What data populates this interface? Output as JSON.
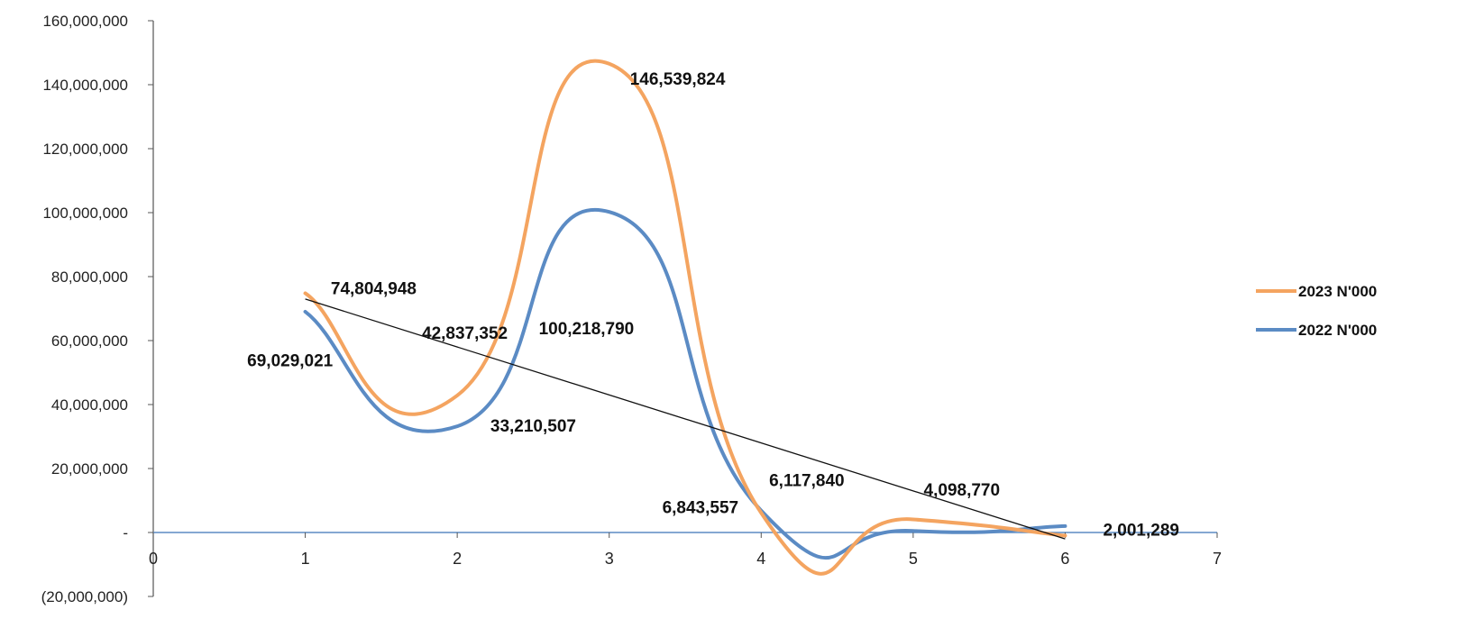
{
  "chart_data": {
    "type": "line",
    "x": [
      1,
      2,
      3,
      4,
      5,
      6
    ],
    "series": [
      {
        "name": "2023 N'000",
        "color": "#F4A460",
        "values": [
          74804948,
          42837352,
          146539824,
          6117840,
          4098770,
          -1000000
        ]
      },
      {
        "name": "2022 N'000",
        "color": "#5B8BC4",
        "values": [
          69029021,
          33210507,
          100218790,
          6843557,
          500000,
          2001289
        ]
      }
    ],
    "trendline": {
      "color": "#111111",
      "from": [
        1,
        73000000
      ],
      "to": [
        6,
        -2000000
      ]
    },
    "data_labels": [
      {
        "text": "74,804,948",
        "x": 1.45,
        "y": 74500000
      },
      {
        "text": "69,029,021",
        "x": 0.9,
        "y": 52000000
      },
      {
        "text": "42,837,352",
        "x": 2.05,
        "y": 60500000
      },
      {
        "text": "33,210,507",
        "x": 2.5,
        "y": 31500000
      },
      {
        "text": "146,539,824",
        "x": 3.45,
        "y": 140000000
      },
      {
        "text": "100,218,790",
        "x": 2.85,
        "y": 62000000
      },
      {
        "text": "6,117,840",
        "x": 4.3,
        "y": 14500000
      },
      {
        "text": "6,843,557",
        "x": 3.6,
        "y": 6000000
      },
      {
        "text": "4,098,770",
        "x": 5.32,
        "y": 11500000
      },
      {
        "text": "2,001,289",
        "x": 6.5,
        "y": -1000000
      }
    ],
    "xlim": [
      0,
      7
    ],
    "ylim": [
      -20000000,
      160000000
    ],
    "y_ticks": [
      {
        "value": 160000000,
        "label": "160,000,000"
      },
      {
        "value": 140000000,
        "label": "140,000,000"
      },
      {
        "value": 120000000,
        "label": "120,000,000"
      },
      {
        "value": 100000000,
        "label": "100,000,000"
      },
      {
        "value": 80000000,
        "label": "80,000,000"
      },
      {
        "value": 60000000,
        "label": "60,000,000"
      },
      {
        "value": 40000000,
        "label": "40,000,000"
      },
      {
        "value": 20000000,
        "label": "20,000,000"
      },
      {
        "value": 0,
        "label": "-"
      },
      {
        "value": -20000000,
        "label": "(20,000,000)"
      }
    ],
    "x_ticks": [
      {
        "value": 0,
        "label": "0"
      },
      {
        "value": 1,
        "label": "1"
      },
      {
        "value": 2,
        "label": "2"
      },
      {
        "value": 3,
        "label": "3"
      },
      {
        "value": 4,
        "label": "4"
      },
      {
        "value": 5,
        "label": "5"
      },
      {
        "value": 6,
        "label": "6"
      },
      {
        "value": 7,
        "label": "7"
      }
    ],
    "title": "",
    "xlabel": "",
    "ylabel": "",
    "grid": false,
    "legend_position": "right"
  }
}
